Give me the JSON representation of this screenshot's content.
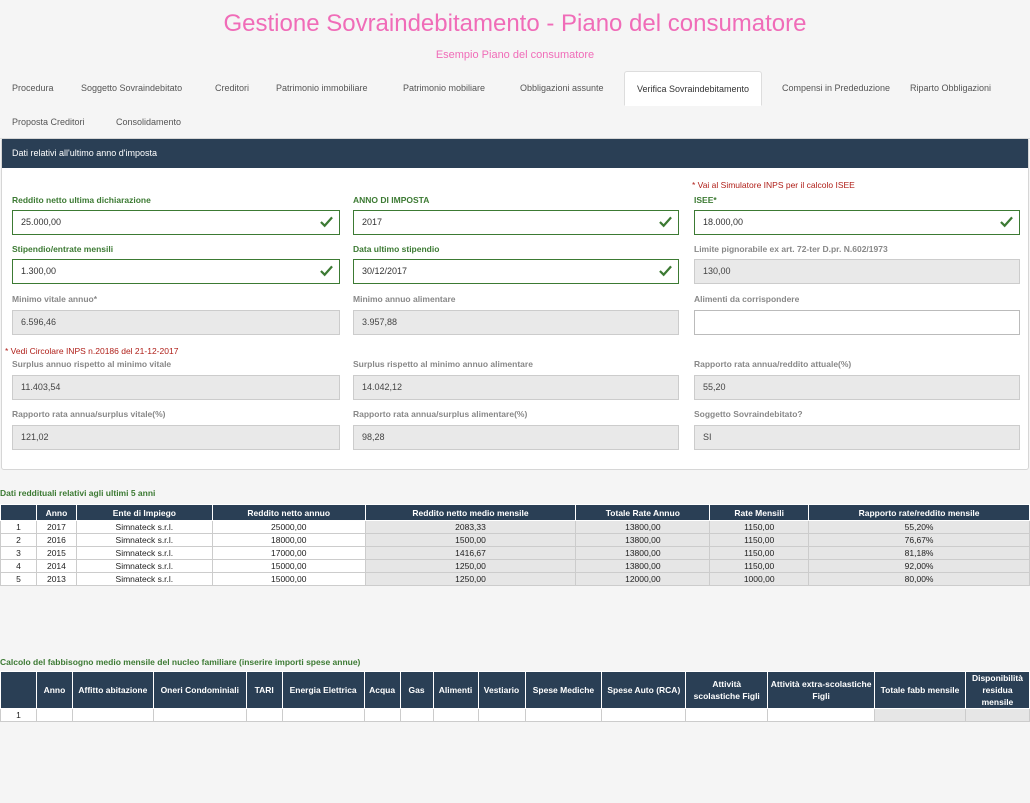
{
  "header": {
    "title": "Gestione Sovraindebitamento - Piano del consumatore",
    "subtitle": "Esempio Piano del consumatore"
  },
  "tabs": [
    {
      "label": "Procedura"
    },
    {
      "label": "Soggetto Sovraindebitato"
    },
    {
      "label": "Creditori"
    },
    {
      "label": "Patrimonio immobiliare"
    },
    {
      "label": "Patrimonio mobiliare"
    },
    {
      "label": "Obbligazioni assunte"
    },
    {
      "label": "Verifica Sovraindebitamento"
    },
    {
      "label": "Compensi in Prededuzione"
    },
    {
      "label": "Riparto Obbligazioni"
    },
    {
      "label": "Proposta Creditori"
    },
    {
      "label": "Consolidamento"
    }
  ],
  "panel": {
    "title": "Dati relativi all'ultimo anno d'imposta",
    "isee_note": "* Vai al Simulatore INPS per il calcolo ISEE",
    "circolare_note": "* Vedi Circolare INPS n.20186 del 21-12-2017",
    "fields": {
      "reddito_netto": {
        "label": "Reddito netto ultima dichiarazione",
        "value": "25.000,00"
      },
      "anno_imposta": {
        "label": "ANNO DI IMPOSTA",
        "value": "2017"
      },
      "isee": {
        "label": "ISEE*",
        "value": "18.000,00"
      },
      "stipendio": {
        "label": "Stipendio/entrate mensili",
        "value": "1.300,00"
      },
      "data_stipendio": {
        "label": "Data ultimo stipendio",
        "value": "30/12/2017"
      },
      "limite_pignorabile": {
        "label": "Limite pignorabile ex art. 72-ter D.pr. N.602/1973",
        "value": "130,00"
      },
      "minimo_vitale": {
        "label": "Minimo vitale annuo*",
        "value": "6.596,46"
      },
      "minimo_alimentare": {
        "label": "Minimo annuo alimentare",
        "value": "3.957,88"
      },
      "alimenti": {
        "label": "Alimenti da corrispondere",
        "value": ""
      },
      "surplus_vitale": {
        "label": "Surplus annuo rispetto al minimo vitale",
        "value": "11.403,54"
      },
      "surplus_alimentare": {
        "label": "Surplus rispetto al minimo annuo alimentare",
        "value": "14.042,12"
      },
      "rapporto_reddito": {
        "label": "Rapporto rata annua/reddito attuale(%)",
        "value": "55,20"
      },
      "rapporto_vitale": {
        "label": "Rapporto rata annua/surplus vitale(%)",
        "value": "121,02"
      },
      "rapporto_alimentare": {
        "label": "Rapporto rata annua/surplus alimentare(%)",
        "value": "98,28"
      },
      "sovraindebitato": {
        "label": "Soggetto Sovraindebitato?",
        "value": "SI"
      }
    }
  },
  "reddituali": {
    "title": "Dati reddituali relativi agli ultimi 5 anni",
    "headers": [
      "",
      "Anno",
      "Ente di Impiego",
      "Reddito netto annuo",
      "Reddito netto medio mensile",
      "Totale Rate Annuo",
      "Rate Mensili",
      "Rapporto rate/reddito mensile"
    ],
    "rows": [
      [
        "1",
        "2017",
        "Simnateck s.r.l.",
        "25000,00",
        "2083,33",
        "13800,00",
        "1150,00",
        "55,20%"
      ],
      [
        "2",
        "2016",
        "Simnateck s.r.l.",
        "18000,00",
        "1500,00",
        "13800,00",
        "1150,00",
        "76,67%"
      ],
      [
        "3",
        "2015",
        "Simnateck s.r.l.",
        "17000,00",
        "1416,67",
        "13800,00",
        "1150,00",
        "81,18%"
      ],
      [
        "4",
        "2014",
        "Simnateck s.r.l.",
        "15000,00",
        "1250,00",
        "13800,00",
        "1150,00",
        "92,00%"
      ],
      [
        "5",
        "2013",
        "Simnateck s.r.l.",
        "15000,00",
        "1250,00",
        "12000,00",
        "1000,00",
        "80,00%"
      ]
    ]
  },
  "fabbisogno": {
    "title": "Calcolo del fabbisogno medio mensile del nucleo familiare (inserire importi spese annue)",
    "headers": [
      "",
      "Anno",
      "Affitto abitazione",
      "Oneri Condominiali",
      "TARI",
      "Energia Elettrica",
      "Acqua",
      "Gas",
      "Alimenti",
      "Vestiario",
      "Spese Mediche",
      "Spese Auto (RCA)",
      "Attività scolastiche Figli",
      "Attività extra-scolastiche Figli",
      "Totale fabb mensile",
      "Disponibilità residua mensile"
    ],
    "rows": [
      [
        "1",
        "",
        "",
        "",
        "",
        "",
        "",
        "",
        "",
        "",
        "",
        "",
        "",
        "",
        "",
        ""
      ]
    ]
  },
  "colors": {
    "accent": "#f06cb8",
    "header_bg": "#2a3f55",
    "valid": "#3c7a33",
    "note": "#b0201a"
  },
  "icons": {
    "valid": "check-icon"
  }
}
